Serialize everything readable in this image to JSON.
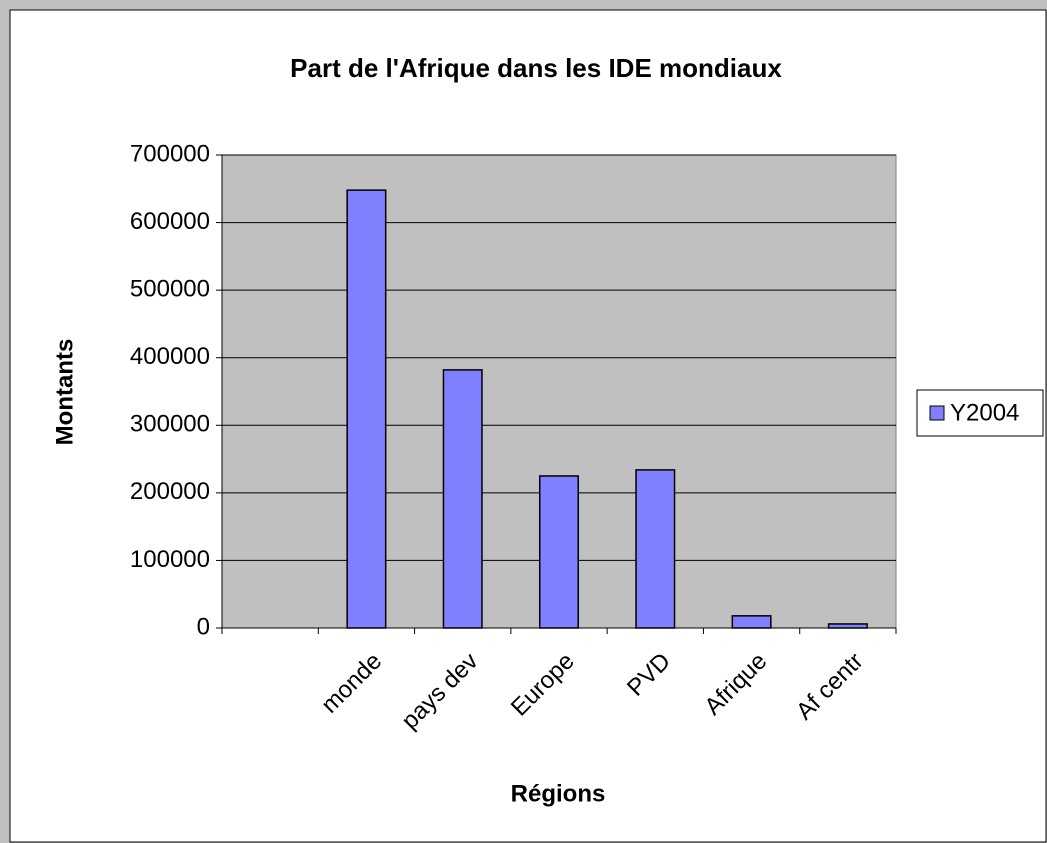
{
  "chart_data": {
    "type": "bar",
    "title": "Part de l'Afrique dans les IDE mondiaux",
    "x_label": "Régions",
    "y_label": "Montants",
    "categories": [
      null,
      "monde",
      "pays dev",
      "Europe",
      "PVD",
      "Afrique",
      "Af centr"
    ],
    "series": [
      {
        "name": "Y2004",
        "color": "#8080ff",
        "values": [
          null,
          648000,
          382000,
          225000,
          234000,
          18000,
          6000
        ]
      }
    ],
    "ylim": [
      0,
      700000
    ],
    "yticks": [
      0,
      100000,
      200000,
      300000,
      400000,
      500000,
      600000,
      700000
    ],
    "grid": true,
    "legend": "right"
  }
}
